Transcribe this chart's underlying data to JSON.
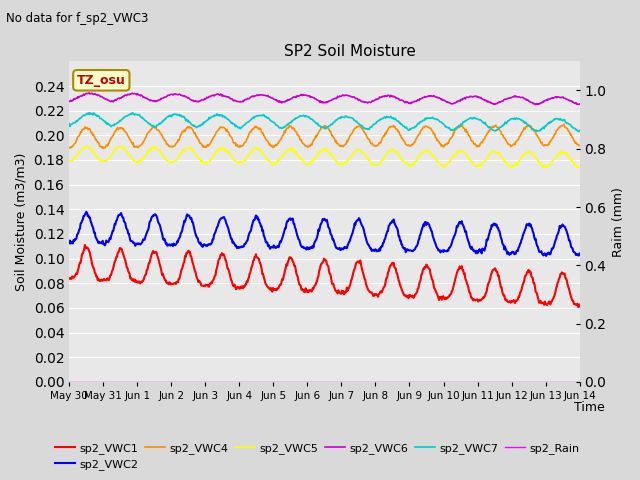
{
  "title": "SP2 Soil Moisture",
  "subtitle": "No data for f_sp2_VWC3",
  "xlabel": "Time",
  "ylabel_left": "Soil Moisture (m3/m3)",
  "ylabel_right": "Raim (mm)",
  "tz_label": "TZ_osu",
  "x_tick_labels": [
    "May 30",
    "May 31",
    "Jun 1",
    "Jun 2",
    "Jun 3",
    "Jun 4",
    "Jun 5",
    "Jun 6",
    "Jun 7",
    "Jun 8",
    "Jun 9",
    "Jun 10",
    "Jun 11",
    "Jun 12",
    "Jun 13",
    "Jun 14"
  ],
  "ylim_left": [
    0.0,
    0.26
  ],
  "ylim_right": [
    0.0,
    1.1
  ],
  "yticks_left": [
    0.0,
    0.02,
    0.04,
    0.06,
    0.08,
    0.1,
    0.12,
    0.14,
    0.16,
    0.18,
    0.2,
    0.22,
    0.24
  ],
  "yticks_right": [
    0.0,
    0.2,
    0.4,
    0.6,
    0.8,
    1.0
  ],
  "background_color": "#e8e8e8",
  "grid_color": "#ffffff",
  "colors": {
    "sp2_VWC1": "#ff0000",
    "sp2_VWC2": "#0000ff",
    "sp2_VWC4": "#ff8c00",
    "sp2_VWC5": "#ffff00",
    "sp2_VWC6": "#cc00cc",
    "sp2_VWC7": "#00cccc",
    "sp2_Rain": "#ff00ff"
  },
  "legend_order": [
    "sp2_VWC1",
    "sp2_VWC2",
    "sp2_VWC4",
    "sp2_VWC5",
    "sp2_VWC6",
    "sp2_VWC7",
    "sp2_Rain"
  ]
}
